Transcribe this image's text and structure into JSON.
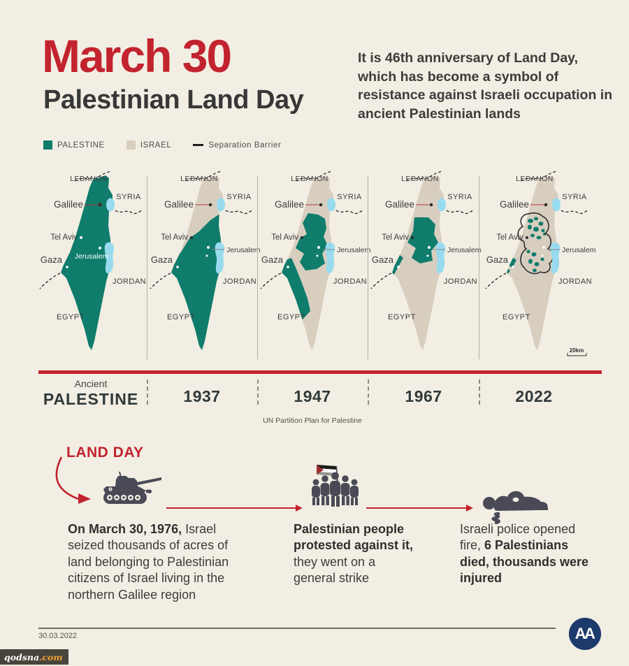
{
  "header": {
    "title": "March 30",
    "subtitle": "Palestinian Land Day",
    "intro": "It is 46th anniversary of Land Day, which has become a symbol of resistance against Israeli occupation in ancient Palestinian lands"
  },
  "legend": {
    "palestine": "PALESTINE",
    "israel": "ISRAEL",
    "barrier": "Separation Barrier"
  },
  "colors": {
    "bg": "#f2eee3",
    "palestine": "#0f7c6c",
    "israel": "#d8cec0",
    "water": "#98dbee",
    "red": "#c3232e",
    "ink": "#3b3b3b",
    "icon": "#4a4a57"
  },
  "map_labels": {
    "lebanon": "LEBANON",
    "syria": "SYRIA",
    "galilee": "Galilee",
    "tel_aviv": "Tel Aviv",
    "jerusalem": "Jerusalem",
    "gaza": "Gaza",
    "jordan": "JORDAN",
    "egypt": "EGYPT",
    "scale": "20km"
  },
  "timeline": {
    "items": [
      {
        "pre": "Ancient",
        "label": "PALESTINE"
      },
      {
        "label": "1937"
      },
      {
        "label": "1947",
        "note": "UN Partition Plan for Palestine"
      },
      {
        "label": "1967"
      },
      {
        "label": "2022"
      }
    ]
  },
  "land_day": {
    "heading": "LAND DAY",
    "steps": [
      {
        "bold": "On March 30, 1976,",
        "normal": " Israel seized thousands of acres of land belonging to Palestinian citizens of Israel living in the northern Galilee region"
      },
      {
        "bold": "Palestinian people protested against it,",
        "normal": " they went on a general strike"
      },
      {
        "normal": "Israeli police opened fire, ",
        "bold": "6 Palestinians died, thousands were injured"
      }
    ]
  },
  "footer": {
    "date": "30.03.2022",
    "agency": "AA"
  },
  "watermark": {
    "name": "qodsna",
    "tld": ".com"
  }
}
